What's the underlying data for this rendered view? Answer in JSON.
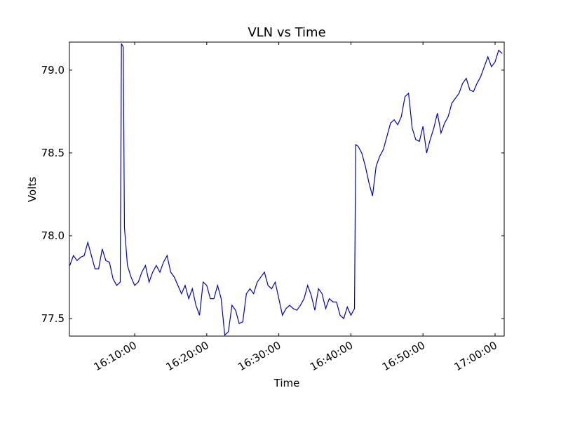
{
  "chart_data": {
    "type": "line",
    "title": "VLN vs Time",
    "x_label": "Time",
    "y_label": "Volts",
    "color": "#0000cc",
    "x": [
      "16:01:00",
      "16:01:30",
      "16:02:00",
      "16:02:30",
      "16:03:00",
      "16:03:30",
      "16:04:00",
      "16:04:30",
      "16:05:00",
      "16:05:30",
      "16:06:00",
      "16:06:30",
      "16:07:00",
      "16:07:30",
      "16:08:00",
      "16:08:10",
      "16:08:25",
      "16:08:35",
      "16:09:00",
      "16:09:30",
      "16:10:00",
      "16:10:30",
      "16:11:00",
      "16:11:30",
      "16:12:00",
      "16:12:30",
      "16:13:00",
      "16:13:30",
      "16:14:00",
      "16:14:30",
      "16:15:00",
      "16:15:30",
      "16:16:00",
      "16:16:30",
      "16:17:00",
      "16:17:30",
      "16:18:00",
      "16:18:30",
      "16:19:00",
      "16:19:30",
      "16:20:00",
      "16:20:30",
      "16:21:00",
      "16:21:30",
      "16:22:00",
      "16:22:30",
      "16:23:00",
      "16:23:30",
      "16:24:00",
      "16:24:30",
      "16:25:00",
      "16:25:30",
      "16:26:00",
      "16:26:30",
      "16:27:00",
      "16:27:30",
      "16:28:00",
      "16:28:30",
      "16:29:00",
      "16:29:30",
      "16:30:00",
      "16:30:30",
      "16:31:00",
      "16:31:30",
      "16:32:00",
      "16:32:30",
      "16:33:00",
      "16:33:30",
      "16:34:00",
      "16:34:30",
      "16:35:00",
      "16:35:30",
      "16:36:00",
      "16:36:30",
      "16:37:00",
      "16:37:30",
      "16:38:00",
      "16:38:30",
      "16:39:00",
      "16:39:30",
      "16:40:00",
      "16:40:30",
      "16:40:40",
      "16:41:00",
      "16:41:30",
      "16:42:00",
      "16:42:30",
      "16:43:00",
      "16:43:30",
      "16:44:00",
      "16:44:30",
      "16:45:00",
      "16:45:30",
      "16:46:00",
      "16:46:30",
      "16:47:00",
      "16:47:30",
      "16:48:00",
      "16:48:30",
      "16:49:00",
      "16:49:30",
      "16:50:00",
      "16:50:30",
      "16:51:00",
      "16:51:30",
      "16:52:00",
      "16:52:30",
      "16:53:00",
      "16:53:30",
      "16:54:00",
      "16:54:30",
      "16:55:00",
      "16:55:30",
      "16:56:00",
      "16:56:30",
      "16:57:00",
      "16:57:30",
      "16:58:00",
      "16:58:30",
      "16:59:00",
      "16:59:30",
      "17:00:00",
      "17:00:30",
      "17:01:00"
    ],
    "values": [
      77.82,
      77.88,
      77.85,
      77.87,
      77.88,
      77.96,
      77.88,
      77.8,
      77.8,
      77.92,
      77.85,
      77.84,
      77.74,
      77.7,
      77.72,
      79.16,
      79.14,
      78.05,
      77.82,
      77.75,
      77.7,
      77.72,
      77.78,
      77.82,
      77.72,
      77.78,
      77.82,
      77.78,
      77.84,
      77.88,
      77.78,
      77.75,
      77.7,
      77.65,
      77.7,
      77.62,
      77.68,
      77.58,
      77.52,
      77.72,
      77.7,
      77.62,
      77.62,
      77.7,
      77.62,
      77.4,
      77.42,
      77.58,
      77.55,
      77.47,
      77.48,
      77.65,
      77.68,
      77.65,
      77.72,
      77.75,
      77.78,
      77.7,
      77.68,
      77.72,
      77.62,
      77.52,
      77.56,
      77.58,
      77.56,
      77.55,
      77.58,
      77.62,
      77.7,
      77.64,
      77.55,
      77.68,
      77.65,
      77.56,
      77.62,
      77.6,
      77.6,
      77.52,
      77.5,
      77.57,
      77.52,
      77.56,
      78.55,
      78.54,
      78.5,
      78.42,
      78.32,
      78.24,
      78.42,
      78.48,
      78.52,
      78.6,
      78.68,
      78.7,
      78.67,
      78.72,
      78.84,
      78.86,
      78.65,
      78.58,
      78.57,
      78.66,
      78.5,
      78.58,
      78.65,
      78.74,
      78.62,
      78.68,
      78.72,
      78.8,
      78.83,
      78.86,
      78.92,
      78.95,
      78.88,
      78.87,
      78.92,
      78.96,
      79.02,
      79.08,
      79.02,
      79.05,
      79.12,
      79.1
    ],
    "xlim": [
      "16:00:57",
      "17:01:16"
    ],
    "xticks": [
      "16:10:00",
      "16:20:00",
      "16:30:00",
      "16:40:00",
      "16:50:00",
      "17:00:00"
    ],
    "ylim": [
      77.394,
      79.169
    ],
    "yticks": [
      77.5,
      {
        "value": 78,
        "label": "78.0"
      },
      78.5,
      {
        "value": 79,
        "label": "79.0"
      }
    ]
  }
}
